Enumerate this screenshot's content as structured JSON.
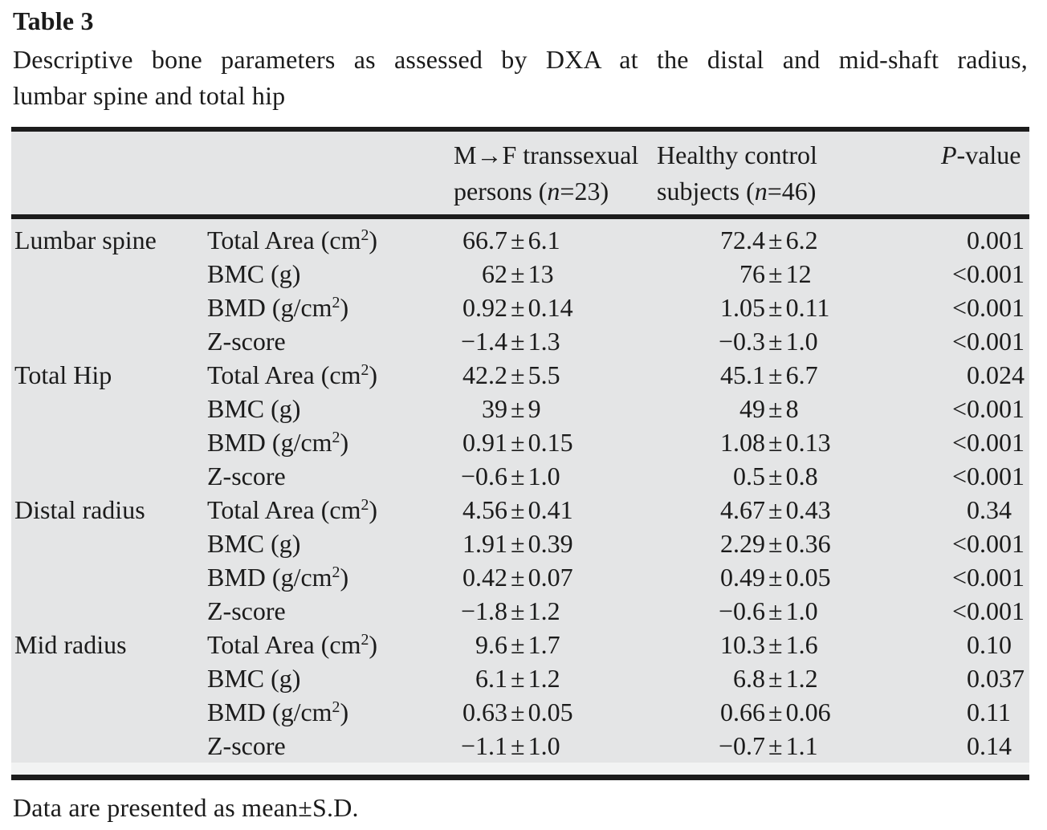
{
  "page": {
    "title": "Table 3",
    "caption_line1": "Descriptive bone parameters as assessed by DXA at the distal and mid-shaft radius,",
    "caption_line2": "lumbar spine and total hip",
    "footnote": "Data are presented as mean±S.D."
  },
  "table": {
    "header": {
      "col3_line1": "M→F transsexual",
      "col3_line2_pre": "persons (",
      "col3_line2_var": "n",
      "col3_line2_post": "=23)",
      "col4_line1": "Healthy control",
      "col4_line2_pre": "subjects (",
      "col4_line2_var": "n",
      "col4_line2_post": "=46)",
      "col5_var": "P",
      "col5_post": "-value"
    },
    "sections": [
      {
        "site": "Lumbar spine",
        "rows": [
          {
            "param": {
              "pre": "Total Area (cm",
              "sup": "2",
              "post": ")"
            },
            "mf": "66.7±6.1",
            "hc": "72.4±6.2",
            "p": "0.001"
          },
          {
            "param": {
              "pre": "BMC (g)",
              "sup": "",
              "post": ""
            },
            "mf": "62±13",
            "hc": "76±12",
            "p": "<0.001"
          },
          {
            "param": {
              "pre": "BMD (g/cm",
              "sup": "2",
              "post": ")"
            },
            "mf": "0.92±0.14",
            "hc": "1.05±0.11",
            "p": "<0.001"
          },
          {
            "param": {
              "pre": "Z-score",
              "sup": "",
              "post": ""
            },
            "mf": "−1.4±1.3",
            "hc": "−0.3±1.0",
            "p": "<0.001"
          }
        ]
      },
      {
        "site": "Total Hip",
        "rows": [
          {
            "param": {
              "pre": "Total Area (cm",
              "sup": "2",
              "post": ")"
            },
            "mf": "42.2±5.5",
            "hc": "45.1±6.7",
            "p": "0.024"
          },
          {
            "param": {
              "pre": "BMC (g)",
              "sup": "",
              "post": ""
            },
            "mf": "39±9",
            "hc": "49±8",
            "p": "<0.001"
          },
          {
            "param": {
              "pre": "BMD (g/cm",
              "sup": "2",
              "post": ")"
            },
            "mf": "0.91±0.15",
            "hc": "1.08±0.13",
            "p": "<0.001"
          },
          {
            "param": {
              "pre": "Z-score",
              "sup": "",
              "post": ""
            },
            "mf": "−0.6±1.0",
            "hc": "0.5±0.8",
            "p": "<0.001"
          }
        ]
      },
      {
        "site": "Distal radius",
        "rows": [
          {
            "param": {
              "pre": "Total Area (cm",
              "sup": "2",
              "post": ")"
            },
            "mf": "4.56±0.41",
            "hc": "4.67±0.43",
            "p": "0.34"
          },
          {
            "param": {
              "pre": "BMC (g)",
              "sup": "",
              "post": ""
            },
            "mf": "1.91±0.39",
            "hc": "2.29±0.36",
            "p": "<0.001"
          },
          {
            "param": {
              "pre": "BMD (g/cm",
              "sup": "2",
              "post": ")"
            },
            "mf": "0.42±0.07",
            "hc": "0.49±0.05",
            "p": "<0.001"
          },
          {
            "param": {
              "pre": "Z-score",
              "sup": "",
              "post": ""
            },
            "mf": "−1.8±1.2",
            "hc": "−0.6±1.0",
            "p": "<0.001"
          }
        ]
      },
      {
        "site": "Mid radius",
        "rows": [
          {
            "param": {
              "pre": "Total Area (cm",
              "sup": "2",
              "post": ")"
            },
            "mf": "9.6±1.7",
            "hc": "10.3±1.6",
            "p": "0.10"
          },
          {
            "param": {
              "pre": "BMC (g)",
              "sup": "",
              "post": ""
            },
            "mf": "6.1±1.2",
            "hc": "6.8±1.2",
            "p": "0.037"
          },
          {
            "param": {
              "pre": "BMD (g/cm",
              "sup": "2",
              "post": ")"
            },
            "mf": "0.63±0.05",
            "hc": "0.66±0.06",
            "p": "0.11"
          },
          {
            "param": {
              "pre": "Z-score",
              "sup": "",
              "post": ""
            },
            "mf": "−1.1±1.0",
            "hc": "−0.7±1.1",
            "p": "0.14"
          }
        ]
      }
    ]
  }
}
